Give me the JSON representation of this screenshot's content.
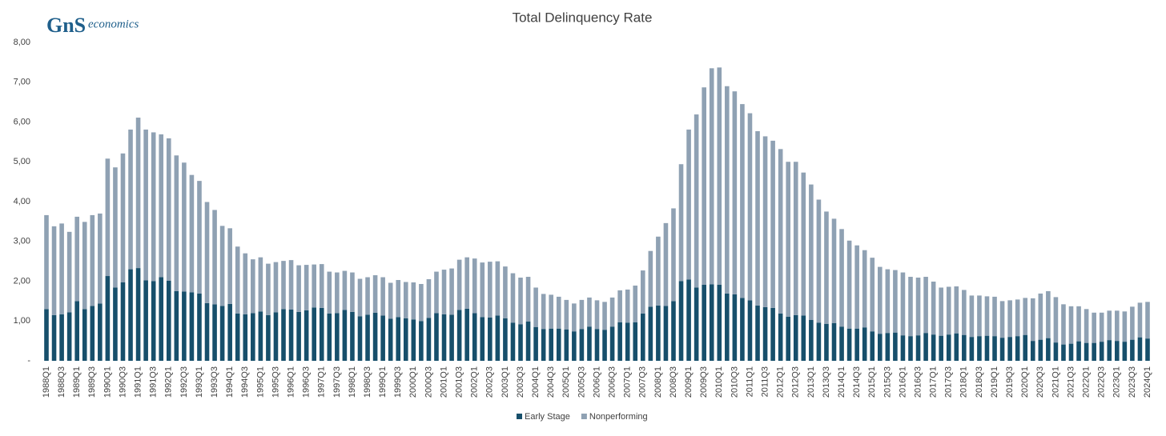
{
  "chart_data": {
    "type": "stacked_bar",
    "title": "Total Delinquency Rate",
    "logo": {
      "mark": "GnS",
      "text": "economics"
    },
    "categories": [
      "1988Q1",
      null,
      "1988Q3",
      null,
      "1989Q1",
      null,
      "1989Q3",
      null,
      "1990Q1",
      null,
      "1990Q3",
      null,
      "1991Q1",
      null,
      "1991Q3",
      null,
      "1992Q1",
      null,
      "1992Q3",
      null,
      "1993Q1",
      null,
      "1993Q3",
      null,
      "1994Q1",
      null,
      "1994Q3",
      null,
      "1995Q1",
      null,
      "1995Q3",
      null,
      "1996Q1",
      null,
      "1996Q3",
      null,
      "1997Q1",
      null,
      "1997Q3",
      null,
      "1998Q1",
      null,
      "1998Q3",
      null,
      "1999Q1",
      null,
      "1999Q3",
      null,
      "2000Q1",
      null,
      "2000Q3",
      null,
      "2001Q1",
      null,
      "2001Q3",
      null,
      "2002Q1",
      null,
      "2002Q3",
      null,
      "2003Q1",
      null,
      "2003Q3",
      null,
      "2004Q1",
      null,
      "2004Q3",
      null,
      "2005Q1",
      null,
      "2005Q3",
      null,
      "2006Q1",
      null,
      "2006Q3",
      null,
      "2007Q1",
      null,
      "2007Q3",
      null,
      "2008Q1",
      null,
      "2008Q3",
      null,
      "2009Q1",
      null,
      "2009Q3",
      null,
      "2010Q1",
      null,
      "2010Q3",
      null,
      "2011Q1",
      null,
      "2011Q3",
      null,
      "2012Q1",
      null,
      "2012Q3",
      null,
      "2013Q1",
      null,
      "2013Q3",
      null,
      "2014Q1",
      null,
      "2014Q3",
      null,
      "2015Q1",
      null,
      "2015Q3",
      null,
      "2016Q1",
      null,
      "2016Q3",
      null,
      "2017Q1",
      null,
      "2017Q3",
      null,
      "2018Q1",
      null,
      "2018Q3",
      null,
      "2019Q1",
      null,
      "2019Q3",
      null,
      "2020Q1",
      null,
      "2020Q3",
      null,
      "2021Q1",
      null,
      "2021Q3",
      null,
      "2022Q1",
      null,
      "2022Q3",
      null,
      "2023Q1",
      null,
      "2023Q3",
      null,
      "2024Q1"
    ],
    "series": [
      {
        "name": "Early Stage",
        "color": "#174f6b",
        "values": [
          1.3,
          1.15,
          1.17,
          1.22,
          1.5,
          1.3,
          1.38,
          1.44,
          2.13,
          1.84,
          1.97,
          2.3,
          2.33,
          2.02,
          2.0,
          2.1,
          2.01,
          1.75,
          1.74,
          1.72,
          1.69,
          1.45,
          1.42,
          1.38,
          1.43,
          1.19,
          1.17,
          1.2,
          1.24,
          1.15,
          1.22,
          1.3,
          1.29,
          1.23,
          1.27,
          1.34,
          1.33,
          1.19,
          1.2,
          1.28,
          1.23,
          1.12,
          1.16,
          1.21,
          1.14,
          1.06,
          1.1,
          1.07,
          1.04,
          1.0,
          1.08,
          1.2,
          1.17,
          1.16,
          1.28,
          1.31,
          1.2,
          1.1,
          1.09,
          1.14,
          1.07,
          0.96,
          0.92,
          0.99,
          0.85,
          0.8,
          0.81,
          0.81,
          0.79,
          0.74,
          0.8,
          0.86,
          0.8,
          0.78,
          0.86,
          0.97,
          0.96,
          0.97,
          1.19,
          1.36,
          1.39,
          1.38,
          1.5,
          2.0,
          2.04,
          1.84,
          1.91,
          1.92,
          1.91,
          1.69,
          1.67,
          1.58,
          1.52,
          1.39,
          1.35,
          1.33,
          1.19,
          1.11,
          1.15,
          1.14,
          1.03,
          0.96,
          0.93,
          0.95,
          0.86,
          0.81,
          0.81,
          0.84,
          0.74,
          0.68,
          0.7,
          0.71,
          0.64,
          0.62,
          0.64,
          0.7,
          0.66,
          0.63,
          0.66,
          0.69,
          0.65,
          0.6,
          0.62,
          0.63,
          0.62,
          0.58,
          0.6,
          0.62,
          0.65,
          0.5,
          0.53,
          0.57,
          0.46,
          0.41,
          0.43,
          0.49,
          0.45,
          0.45,
          0.48,
          0.52,
          0.5,
          0.48,
          0.53,
          0.59,
          0.56
        ]
      },
      {
        "name": "Nonperforming",
        "color": "#8fa1b3",
        "values": [
          2.36,
          2.23,
          2.28,
          2.02,
          2.12,
          2.19,
          2.28,
          2.26,
          2.95,
          3.02,
          3.24,
          3.51,
          3.78,
          3.79,
          3.74,
          3.59,
          3.58,
          3.41,
          3.24,
          2.95,
          2.83,
          2.54,
          2.37,
          2.01,
          1.9,
          1.68,
          1.53,
          1.35,
          1.36,
          1.29,
          1.26,
          1.21,
          1.24,
          1.17,
          1.14,
          1.08,
          1.1,
          1.05,
          1.02,
          0.98,
          0.99,
          0.94,
          0.94,
          0.94,
          0.96,
          0.9,
          0.93,
          0.91,
          0.93,
          0.93,
          0.97,
          1.04,
          1.12,
          1.16,
          1.26,
          1.29,
          1.37,
          1.37,
          1.4,
          1.36,
          1.3,
          1.24,
          1.17,
          1.12,
          0.99,
          0.88,
          0.85,
          0.8,
          0.74,
          0.7,
          0.73,
          0.73,
          0.72,
          0.7,
          0.73,
          0.8,
          0.83,
          0.92,
          1.08,
          1.4,
          1.73,
          2.08,
          2.33,
          2.94,
          3.77,
          4.35,
          4.96,
          5.43,
          5.46,
          5.21,
          5.1,
          4.87,
          4.7,
          4.38,
          4.29,
          4.2,
          4.13,
          3.89,
          3.85,
          3.59,
          3.4,
          3.09,
          2.82,
          2.62,
          2.45,
          2.21,
          2.09,
          1.94,
          1.85,
          1.68,
          1.6,
          1.57,
          1.58,
          1.49,
          1.45,
          1.41,
          1.33,
          1.21,
          1.2,
          1.18,
          1.13,
          1.04,
          1.02,
          0.99,
          0.99,
          0.92,
          0.92,
          0.92,
          0.93,
          1.07,
          1.16,
          1.18,
          1.14,
          1.01,
          0.94,
          0.88,
          0.85,
          0.76,
          0.73,
          0.74,
          0.76,
          0.76,
          0.83,
          0.87,
          0.92
        ]
      }
    ],
    "ylim": [
      0,
      8
    ],
    "yticks": [
      {
        "value": 0,
        "label": "-"
      },
      {
        "value": 1,
        "label": "1,00"
      },
      {
        "value": 2,
        "label": "2,00"
      },
      {
        "value": 3,
        "label": "3,00"
      },
      {
        "value": 4,
        "label": "4,00"
      },
      {
        "value": 5,
        "label": "5,00"
      },
      {
        "value": 6,
        "label": "6,00"
      },
      {
        "value": 7,
        "label": "7,00"
      },
      {
        "value": 8,
        "label": "8,00"
      }
    ],
    "grid": false,
    "legend": "bottom"
  }
}
